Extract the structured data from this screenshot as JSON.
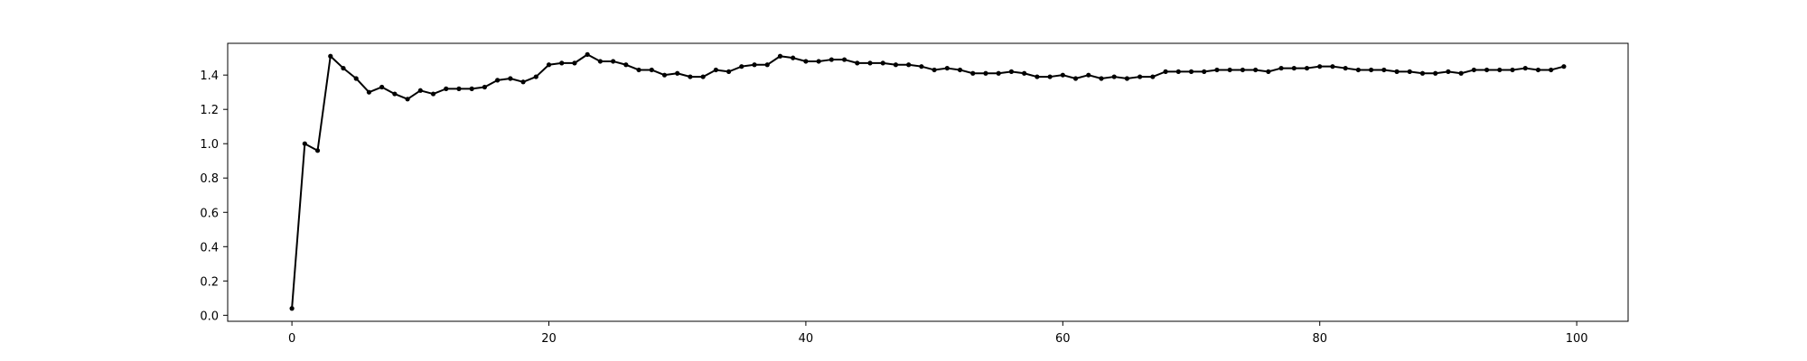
{
  "chart_data": {
    "type": "line",
    "title": "",
    "xlabel": "",
    "ylabel": "",
    "xlim": [
      -5,
      104
    ],
    "ylim": [
      -0.035,
      1.585
    ],
    "xticks": [
      0,
      20,
      40,
      60,
      80,
      100
    ],
    "yticks": [
      0.0,
      0.2,
      0.4,
      0.6,
      0.8,
      1.0,
      1.2,
      1.4
    ],
    "xtick_labels": [
      "0",
      "20",
      "40",
      "60",
      "80",
      "100"
    ],
    "ytick_labels": [
      "0.0",
      "0.2",
      "0.4",
      "0.6",
      "0.8",
      "1.0",
      "1.2",
      "1.4"
    ],
    "grid": false,
    "marker": "dot",
    "series": [
      {
        "color": "#000000",
        "x": [
          0,
          1,
          2,
          3,
          4,
          5,
          6,
          7,
          8,
          9,
          10,
          11,
          12,
          13,
          14,
          15,
          16,
          17,
          18,
          19,
          20,
          21,
          22,
          23,
          24,
          25,
          26,
          27,
          28,
          29,
          30,
          31,
          32,
          33,
          34,
          35,
          36,
          37,
          38,
          39,
          40,
          41,
          42,
          43,
          44,
          45,
          46,
          47,
          48,
          49,
          50,
          51,
          52,
          53,
          54,
          55,
          56,
          57,
          58,
          59,
          60,
          61,
          62,
          63,
          64,
          65,
          66,
          67,
          68,
          69,
          70,
          71,
          72,
          73,
          74,
          75,
          76,
          77,
          78,
          79,
          80,
          81,
          82,
          83,
          84,
          85,
          86,
          87,
          88,
          89,
          90,
          91,
          92,
          93,
          94,
          95,
          96,
          97,
          98,
          99
        ],
        "y": [
          0.04,
          1.0,
          0.96,
          1.51,
          1.44,
          1.38,
          1.3,
          1.33,
          1.29,
          1.26,
          1.31,
          1.29,
          1.32,
          1.32,
          1.32,
          1.33,
          1.37,
          1.38,
          1.36,
          1.39,
          1.46,
          1.47,
          1.47,
          1.52,
          1.48,
          1.48,
          1.46,
          1.43,
          1.43,
          1.4,
          1.41,
          1.39,
          1.39,
          1.43,
          1.42,
          1.45,
          1.46,
          1.46,
          1.51,
          1.5,
          1.48,
          1.48,
          1.49,
          1.49,
          1.47,
          1.47,
          1.47,
          1.46,
          1.46,
          1.45,
          1.43,
          1.44,
          1.43,
          1.41,
          1.41,
          1.41,
          1.42,
          1.41,
          1.39,
          1.39,
          1.4,
          1.38,
          1.4,
          1.38,
          1.39,
          1.38,
          1.39,
          1.39,
          1.42,
          1.42,
          1.42,
          1.42,
          1.43,
          1.43,
          1.43,
          1.43,
          1.42,
          1.44,
          1.44,
          1.44,
          1.45,
          1.45,
          1.44,
          1.43,
          1.43,
          1.43,
          1.42,
          1.42,
          1.41,
          1.41,
          1.42,
          1.41,
          1.43,
          1.43,
          1.43,
          1.43,
          1.44,
          1.43,
          1.43,
          1.45
        ]
      }
    ]
  }
}
